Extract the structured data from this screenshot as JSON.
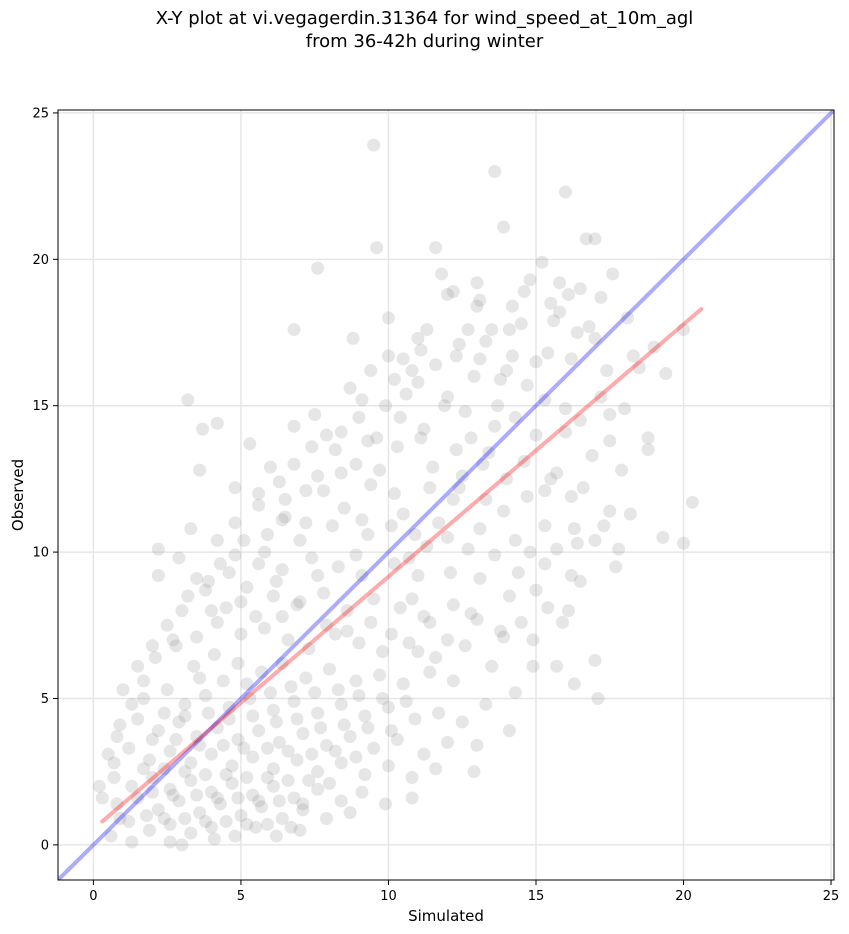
{
  "title_line1": "X-Y plot at vi.vegagerdin.31364 for wind_speed_at_10m_agl",
  "title_line2": "from 36-42h during winter",
  "chart_data": {
    "type": "scatter",
    "title": "X-Y plot at vi.vegagerdin.31364 for wind_speed_at_10m_agl from 36-42h during winter",
    "xlabel": "Simulated",
    "ylabel": "Observed",
    "xlim": [
      -1.2,
      25.1
    ],
    "ylim": [
      -1.2,
      25.1
    ],
    "xticks": [
      0,
      5,
      10,
      15,
      20,
      25
    ],
    "yticks": [
      0,
      5,
      10,
      15,
      20,
      25
    ],
    "grid": true,
    "point_color": "#808080",
    "points": [
      [
        9.5,
        23.9
      ],
      [
        13.6,
        23.0
      ],
      [
        16.0,
        22.3
      ],
      [
        13.9,
        21.1
      ],
      [
        9.6,
        20.4
      ],
      [
        11.6,
        20.4
      ],
      [
        7.6,
        19.7
      ],
      [
        16.7,
        20.7
      ],
      [
        17.0,
        20.7
      ],
      [
        15.2,
        19.9
      ],
      [
        11.8,
        19.5
      ],
      [
        13.0,
        19.2
      ],
      [
        15.8,
        19.2
      ],
      [
        16.5,
        19.0
      ],
      [
        14.8,
        19.3
      ],
      [
        17.6,
        19.5
      ],
      [
        12.0,
        18.8
      ],
      [
        13.0,
        18.4
      ],
      [
        14.2,
        18.4
      ],
      [
        15.5,
        18.5
      ],
      [
        16.1,
        18.8
      ],
      [
        17.2,
        18.7
      ],
      [
        10.0,
        18.0
      ],
      [
        11.3,
        17.6
      ],
      [
        12.7,
        17.6
      ],
      [
        13.5,
        17.6
      ],
      [
        14.5,
        17.8
      ],
      [
        15.6,
        17.9
      ],
      [
        16.8,
        17.7
      ],
      [
        18.1,
        18.0
      ],
      [
        6.8,
        17.6
      ],
      [
        8.8,
        17.3
      ],
      [
        11.1,
        16.9
      ],
      [
        12.3,
        16.7
      ],
      [
        13.1,
        16.6
      ],
      [
        14.2,
        16.7
      ],
      [
        15.0,
        16.5
      ],
      [
        16.2,
        16.6
      ],
      [
        17.4,
        16.2
      ],
      [
        18.5,
        16.3
      ],
      [
        19.0,
        17.0
      ],
      [
        20.0,
        17.6
      ],
      [
        10.0,
        16.7
      ],
      [
        10.8,
        16.2
      ],
      [
        11.6,
        16.4
      ],
      [
        12.9,
        16.0
      ],
      [
        13.8,
        15.9
      ],
      [
        14.7,
        15.7
      ],
      [
        15.3,
        15.2
      ],
      [
        16.0,
        14.9
      ],
      [
        17.2,
        15.3
      ],
      [
        18.0,
        14.9
      ],
      [
        9.1,
        15.2
      ],
      [
        9.9,
        15.0
      ],
      [
        10.6,
        15.4
      ],
      [
        11.9,
        15.0
      ],
      [
        12.6,
        14.8
      ],
      [
        13.6,
        14.3
      ],
      [
        14.3,
        14.6
      ],
      [
        15.0,
        14.0
      ],
      [
        16.5,
        14.5
      ],
      [
        17.5,
        14.7
      ],
      [
        3.2,
        15.2
      ],
      [
        4.2,
        14.4
      ],
      [
        3.7,
        14.2
      ],
      [
        6.8,
        14.3
      ],
      [
        7.5,
        14.7
      ],
      [
        8.4,
        14.1
      ],
      [
        9.3,
        13.8
      ],
      [
        10.3,
        13.6
      ],
      [
        11.1,
        13.9
      ],
      [
        12.3,
        13.5
      ],
      [
        13.4,
        13.4
      ],
      [
        14.6,
        13.1
      ],
      [
        15.7,
        12.7
      ],
      [
        17.5,
        13.8
      ],
      [
        18.8,
        13.5
      ],
      [
        3.6,
        12.8
      ],
      [
        5.3,
        13.7
      ],
      [
        6.0,
        12.9
      ],
      [
        6.8,
        13.0
      ],
      [
        7.6,
        12.6
      ],
      [
        8.4,
        12.7
      ],
      [
        9.4,
        12.3
      ],
      [
        10.2,
        12.0
      ],
      [
        11.4,
        12.2
      ],
      [
        12.2,
        11.8
      ],
      [
        13.3,
        11.8
      ],
      [
        14.0,
        12.5
      ],
      [
        15.3,
        12.1
      ],
      [
        16.2,
        11.9
      ],
      [
        17.5,
        11.4
      ],
      [
        18.2,
        11.3
      ],
      [
        3.3,
        10.8
      ],
      [
        4.8,
        11.0
      ],
      [
        5.6,
        11.6
      ],
      [
        6.5,
        11.2
      ],
      [
        7.2,
        11.0
      ],
      [
        8.1,
        10.9
      ],
      [
        9.1,
        11.1
      ],
      [
        10.1,
        10.9
      ],
      [
        10.9,
        10.6
      ],
      [
        12.0,
        10.5
      ],
      [
        13.1,
        10.8
      ],
      [
        14.3,
        10.4
      ],
      [
        15.3,
        10.9
      ],
      [
        16.4,
        10.3
      ],
      [
        17.0,
        10.4
      ],
      [
        17.8,
        10.1
      ],
      [
        19.3,
        10.5
      ],
      [
        20.0,
        10.3
      ],
      [
        20.3,
        11.7
      ],
      [
        2.2,
        10.1
      ],
      [
        2.9,
        9.8
      ],
      [
        4.8,
        9.9
      ],
      [
        5.6,
        9.6
      ],
      [
        6.4,
        9.4
      ],
      [
        7.4,
        9.8
      ],
      [
        8.3,
        9.5
      ],
      [
        9.1,
        9.2
      ],
      [
        10.2,
        9.6
      ],
      [
        11.0,
        9.2
      ],
      [
        12.1,
        9.3
      ],
      [
        13.1,
        9.1
      ],
      [
        14.4,
        9.3
      ],
      [
        15.3,
        9.6
      ],
      [
        16.2,
        9.2
      ],
      [
        2.2,
        9.2
      ],
      [
        3.0,
        8.0
      ],
      [
        3.8,
        8.7
      ],
      [
        4.5,
        8.1
      ],
      [
        5.2,
        8.8
      ],
      [
        6.1,
        8.5
      ],
      [
        6.9,
        8.2
      ],
      [
        7.8,
        8.6
      ],
      [
        8.6,
        8.0
      ],
      [
        9.5,
        8.4
      ],
      [
        10.4,
        8.1
      ],
      [
        11.2,
        7.8
      ],
      [
        12.2,
        8.2
      ],
      [
        13.0,
        7.7
      ],
      [
        13.9,
        7.1
      ],
      [
        14.5,
        7.6
      ],
      [
        15.4,
        8.1
      ],
      [
        16.1,
        8.0
      ],
      [
        2.5,
        7.5
      ],
      [
        3.5,
        7.1
      ],
      [
        4.2,
        7.6
      ],
      [
        5.0,
        7.2
      ],
      [
        5.8,
        7.4
      ],
      [
        6.6,
        7.0
      ],
      [
        7.3,
        6.7
      ],
      [
        8.2,
        7.2
      ],
      [
        9.0,
        6.9
      ],
      [
        9.8,
        6.6
      ],
      [
        10.7,
        6.9
      ],
      [
        11.6,
        6.4
      ],
      [
        12.6,
        6.8
      ],
      [
        13.5,
        6.1
      ],
      [
        14.9,
        6.1
      ],
      [
        15.7,
        6.1
      ],
      [
        16.3,
        5.5
      ],
      [
        17.0,
        6.3
      ],
      [
        17.1,
        5.0
      ],
      [
        1.5,
        6.1
      ],
      [
        2.1,
        6.4
      ],
      [
        2.8,
        6.8
      ],
      [
        3.4,
        6.1
      ],
      [
        4.1,
        6.5
      ],
      [
        4.9,
        6.2
      ],
      [
        5.7,
        5.9
      ],
      [
        6.4,
        6.2
      ],
      [
        7.2,
        5.7
      ],
      [
        8.0,
        6.0
      ],
      [
        8.9,
        5.6
      ],
      [
        9.7,
        5.8
      ],
      [
        10.5,
        5.5
      ],
      [
        11.4,
        5.9
      ],
      [
        12.2,
        5.6
      ],
      [
        13.3,
        4.8
      ],
      [
        14.3,
        5.2
      ],
      [
        1.0,
        5.3
      ],
      [
        1.7,
        5.0
      ],
      [
        2.5,
        5.3
      ],
      [
        3.1,
        4.8
      ],
      [
        3.8,
        5.1
      ],
      [
        4.6,
        4.7
      ],
      [
        5.3,
        5.0
      ],
      [
        6.1,
        4.6
      ],
      [
        6.8,
        4.9
      ],
      [
        7.6,
        4.5
      ],
      [
        8.4,
        4.8
      ],
      [
        9.2,
        4.4
      ],
      [
        10.0,
        4.7
      ],
      [
        10.9,
        4.3
      ],
      [
        11.7,
        4.5
      ],
      [
        12.5,
        4.2
      ],
      [
        14.1,
        3.9
      ],
      [
        0.9,
        4.1
      ],
      [
        1.5,
        4.3
      ],
      [
        2.2,
        3.9
      ],
      [
        2.9,
        4.2
      ],
      [
        3.5,
        3.7
      ],
      [
        4.2,
        4.0
      ],
      [
        4.9,
        3.6
      ],
      [
        5.6,
        3.9
      ],
      [
        6.3,
        3.5
      ],
      [
        7.1,
        3.8
      ],
      [
        7.9,
        3.4
      ],
      [
        8.7,
        3.7
      ],
      [
        9.5,
        3.3
      ],
      [
        10.3,
        3.6
      ],
      [
        11.2,
        3.1
      ],
      [
        12.0,
        3.5
      ],
      [
        13.0,
        3.4
      ],
      [
        0.5,
        3.1
      ],
      [
        1.2,
        3.3
      ],
      [
        1.9,
        2.9
      ],
      [
        2.6,
        3.2
      ],
      [
        3.3,
        2.8
      ],
      [
        4.0,
        3.1
      ],
      [
        4.7,
        2.7
      ],
      [
        5.4,
        3.0
      ],
      [
        6.1,
        2.6
      ],
      [
        6.9,
        2.9
      ],
      [
        7.6,
        2.5
      ],
      [
        8.4,
        2.8
      ],
      [
        9.2,
        2.4
      ],
      [
        10.0,
        2.7
      ],
      [
        10.8,
        2.3
      ],
      [
        11.6,
        2.6
      ],
      [
        12.9,
        2.5
      ],
      [
        0.7,
        2.3
      ],
      [
        1.3,
        2.0
      ],
      [
        2.0,
        2.3
      ],
      [
        2.6,
        1.9
      ],
      [
        3.3,
        2.2
      ],
      [
        4.0,
        1.8
      ],
      [
        4.7,
        2.1
      ],
      [
        5.4,
        1.7
      ],
      [
        6.1,
        2.0
      ],
      [
        6.8,
        1.6
      ],
      [
        7.6,
        1.9
      ],
      [
        8.4,
        1.5
      ],
      [
        9.1,
        1.8
      ],
      [
        9.9,
        1.4
      ],
      [
        10.8,
        1.6
      ],
      [
        0.3,
        1.6
      ],
      [
        0.8,
        1.4
      ],
      [
        1.5,
        1.6
      ],
      [
        2.2,
        1.2
      ],
      [
        2.9,
        1.5
      ],
      [
        3.6,
        1.1
      ],
      [
        4.3,
        1.4
      ],
      [
        5.0,
        1.0
      ],
      [
        5.7,
        1.3
      ],
      [
        6.4,
        0.9
      ],
      [
        7.1,
        1.2
      ],
      [
        7.9,
        0.9
      ],
      [
        8.7,
        1.1
      ],
      [
        1.2,
        0.8
      ],
      [
        1.9,
        0.5
      ],
      [
        2.6,
        0.7
      ],
      [
        3.3,
        0.4
      ],
      [
        4.0,
        0.6
      ],
      [
        4.8,
        0.3
      ],
      [
        5.5,
        0.6
      ],
      [
        6.2,
        0.3
      ],
      [
        7.0,
        0.5
      ],
      [
        1.3,
        0.1
      ],
      [
        2.6,
        0.1
      ],
      [
        3.0,
        0.0
      ],
      [
        4.1,
        0.2
      ],
      [
        0.9,
        0.9
      ],
      [
        0.6,
        0.3
      ],
      [
        6.5,
        11.8
      ],
      [
        7.0,
        10.4
      ],
      [
        7.8,
        12.1
      ],
      [
        8.5,
        11.5
      ],
      [
        8.9,
        13.0
      ],
      [
        9.7,
        12.8
      ],
      [
        10.5,
        11.3
      ],
      [
        11.3,
        10.2
      ],
      [
        5.8,
        10.0
      ],
      [
        6.2,
        9.0
      ],
      [
        7.0,
        8.3
      ],
      [
        7.6,
        9.2
      ],
      [
        8.9,
        9.9
      ],
      [
        9.3,
        10.6
      ],
      [
        10.7,
        9.8
      ],
      [
        11.7,
        11.0
      ],
      [
        12.5,
        12.6
      ],
      [
        4.6,
        9.3
      ],
      [
        5.0,
        8.3
      ],
      [
        5.5,
        7.8
      ],
      [
        6.4,
        7.8
      ],
      [
        7.9,
        7.5
      ],
      [
        8.6,
        7.3
      ],
      [
        9.4,
        7.6
      ],
      [
        10.1,
        7.2
      ],
      [
        11.0,
        6.6
      ],
      [
        3.6,
        5.7
      ],
      [
        4.4,
        5.6
      ],
      [
        5.2,
        5.5
      ],
      [
        6.0,
        5.2
      ],
      [
        6.7,
        5.4
      ],
      [
        7.5,
        5.2
      ],
      [
        8.3,
        5.3
      ],
      [
        9.0,
        5.1
      ],
      [
        9.8,
        5.0
      ],
      [
        10.6,
        4.9
      ],
      [
        2.4,
        4.5
      ],
      [
        3.1,
        4.4
      ],
      [
        3.9,
        4.5
      ],
      [
        4.6,
        4.3
      ],
      [
        5.4,
        4.4
      ],
      [
        6.2,
        4.2
      ],
      [
        6.9,
        4.3
      ],
      [
        7.7,
        4.0
      ],
      [
        8.5,
        4.1
      ],
      [
        9.3,
        4.0
      ],
      [
        10.1,
        3.9
      ],
      [
        2.0,
        3.6
      ],
      [
        2.8,
        3.6
      ],
      [
        3.6,
        3.4
      ],
      [
        4.4,
        3.4
      ],
      [
        5.1,
        3.3
      ],
      [
        5.9,
        3.3
      ],
      [
        6.6,
        3.2
      ],
      [
        7.4,
        3.1
      ],
      [
        8.2,
        3.2
      ],
      [
        8.9,
        3.0
      ],
      [
        1.7,
        2.6
      ],
      [
        2.4,
        2.6
      ],
      [
        3.1,
        2.5
      ],
      [
        3.8,
        2.4
      ],
      [
        4.5,
        2.4
      ],
      [
        5.2,
        2.3
      ],
      [
        5.9,
        2.3
      ],
      [
        6.6,
        2.2
      ],
      [
        7.3,
        2.2
      ],
      [
        8.0,
        2.1
      ],
      [
        2.0,
        1.8
      ],
      [
        2.7,
        1.7
      ],
      [
        3.5,
        1.7
      ],
      [
        4.2,
        1.6
      ],
      [
        4.9,
        1.6
      ],
      [
        5.6,
        1.5
      ],
      [
        6.3,
        1.5
      ],
      [
        7.1,
        1.4
      ],
      [
        1.8,
        1.0
      ],
      [
        2.4,
        0.9
      ],
      [
        3.1,
        0.9
      ],
      [
        3.8,
        0.8
      ],
      [
        4.5,
        0.8
      ],
      [
        5.2,
        0.7
      ],
      [
        5.9,
        0.7
      ],
      [
        6.7,
        0.6
      ],
      [
        9.6,
        13.9
      ],
      [
        10.4,
        14.6
      ],
      [
        11.2,
        14.2
      ],
      [
        12.0,
        15.3
      ],
      [
        12.8,
        13.9
      ],
      [
        13.7,
        15.0
      ],
      [
        14.0,
        16.2
      ],
      [
        11.5,
        12.9
      ],
      [
        12.4,
        12.2
      ],
      [
        13.2,
        13.0
      ],
      [
        13.9,
        11.4
      ],
      [
        14.7,
        11.9
      ],
      [
        15.5,
        12.5
      ],
      [
        16.6,
        12.2
      ],
      [
        12.7,
        10.1
      ],
      [
        13.6,
        9.9
      ],
      [
        14.8,
        10.0
      ],
      [
        15.7,
        10.1
      ],
      [
        16.5,
        9.0
      ],
      [
        9.0,
        14.6
      ],
      [
        8.2,
        13.5
      ],
      [
        7.4,
        13.6
      ],
      [
        6.3,
        12.4
      ],
      [
        5.6,
        12.0
      ],
      [
        4.8,
        12.2
      ],
      [
        5.9,
        10.6
      ],
      [
        4.2,
        10.4
      ],
      [
        3.9,
        9.0
      ],
      [
        4.0,
        8.0
      ],
      [
        3.2,
        8.5
      ],
      [
        2.7,
        7.0
      ],
      [
        2.0,
        6.8
      ],
      [
        1.7,
        5.6
      ],
      [
        1.3,
        4.8
      ],
      [
        0.8,
        3.7
      ],
      [
        0.7,
        2.8
      ],
      [
        0.2,
        2.0
      ],
      [
        16.0,
        14.1
      ],
      [
        16.9,
        13.3
      ],
      [
        17.9,
        12.8
      ],
      [
        18.8,
        13.9
      ],
      [
        16.3,
        10.8
      ],
      [
        17.3,
        10.9
      ],
      [
        17.7,
        9.5
      ],
      [
        15.0,
        8.7
      ],
      [
        14.1,
        8.5
      ],
      [
        15.9,
        7.6
      ],
      [
        14.9,
        7.0
      ],
      [
        13.8,
        7.3
      ],
      [
        12.8,
        7.9
      ],
      [
        12.0,
        7.0
      ],
      [
        11.4,
        7.6
      ],
      [
        10.8,
        8.4
      ],
      [
        8.7,
        15.6
      ],
      [
        9.4,
        16.2
      ],
      [
        10.2,
        15.9
      ],
      [
        11.0,
        15.8
      ],
      [
        12.4,
        17.1
      ],
      [
        13.3,
        17.2
      ],
      [
        14.1,
        17.6
      ],
      [
        15.4,
        16.8
      ],
      [
        17.0,
        17.3
      ],
      [
        18.3,
        16.7
      ],
      [
        19.4,
        16.1
      ],
      [
        16.4,
        17.5
      ],
      [
        15.8,
        18.2
      ],
      [
        14.6,
        18.9
      ],
      [
        13.1,
        18.6
      ],
      [
        12.2,
        18.9
      ],
      [
        11.0,
        17.3
      ],
      [
        10.5,
        16.6
      ],
      [
        7.9,
        14.0
      ],
      [
        7.2,
        12.1
      ],
      [
        6.4,
        11.1
      ],
      [
        5.1,
        10.4
      ],
      [
        4.3,
        9.6
      ],
      [
        3.5,
        9.1
      ]
    ],
    "reference_line": {
      "name": "1:1",
      "color": "#0000ff",
      "x": [
        -1.2,
        25.1
      ],
      "y": [
        -1.2,
        25.1
      ]
    },
    "fit_line": {
      "name": "fit",
      "color": "#ff0000",
      "x": [
        0.3,
        20.6
      ],
      "y": [
        0.8,
        18.3
      ]
    }
  }
}
